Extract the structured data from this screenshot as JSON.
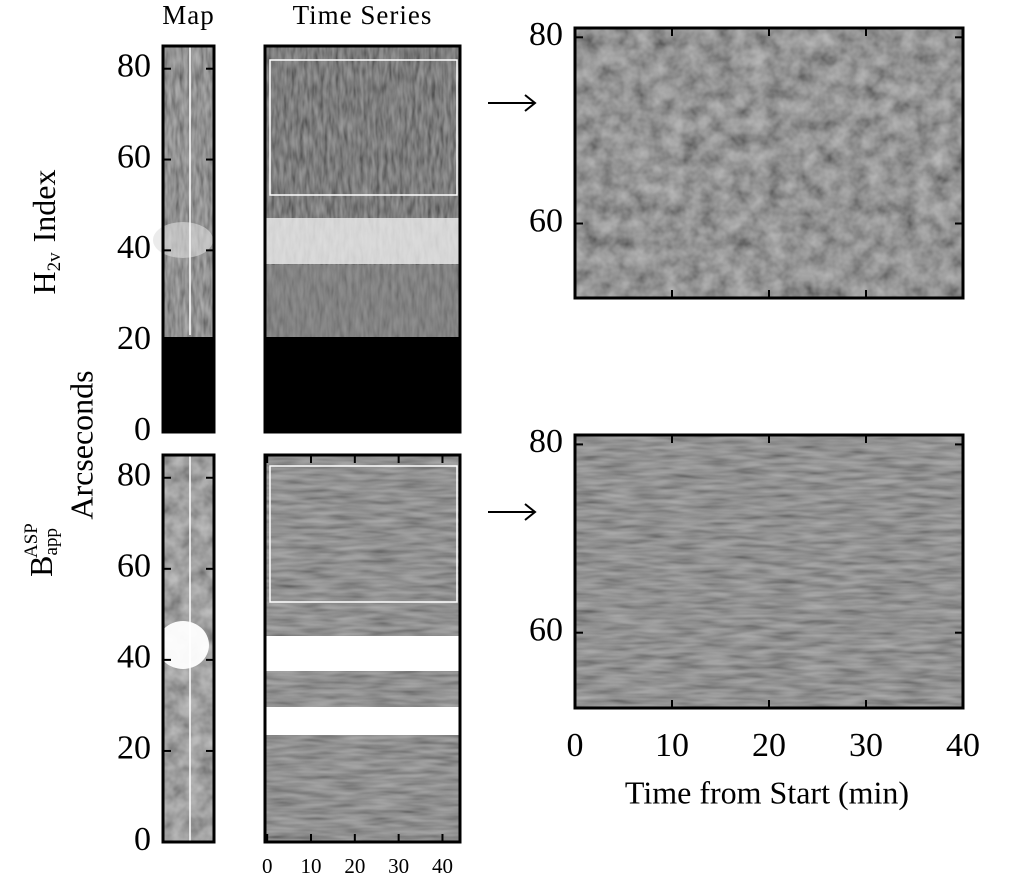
{
  "chart_data": [
    {
      "type": "image",
      "title": "Map",
      "ylim": [
        0,
        85
      ],
      "yticks": [
        0,
        20,
        40,
        60,
        80
      ]
    },
    {
      "type": "image",
      "title": "Time Series",
      "ylim": [
        0,
        85
      ]
    },
    {
      "type": "image",
      "ylim": [
        0,
        85
      ],
      "yticks": [
        0,
        20,
        40,
        60,
        80
      ]
    },
    {
      "type": "image",
      "ylim": [
        0,
        85
      ],
      "xlim": [
        -0.5,
        44
      ],
      "xticks": [
        0,
        10,
        20,
        30,
        40
      ]
    },
    {
      "type": "image",
      "ylim": [
        52,
        81
      ],
      "yticks": [
        60,
        80
      ],
      "xlim": [
        0,
        40
      ],
      "xticks": [
        0,
        10,
        20,
        30,
        40
      ]
    },
    {
      "type": "image",
      "ylim": [
        52,
        81
      ],
      "yticks": [
        60,
        80
      ],
      "xlim": [
        0,
        40
      ],
      "xticks": [
        0,
        10,
        20,
        30,
        40
      ],
      "x_label": "Time from Start (min)"
    }
  ],
  "y_labels": {
    "row1": [
      "H",
      "2v",
      "Index"
    ],
    "shared": "Arcseconds",
    "row2": [
      "B",
      "app",
      "ASP"
    ]
  }
}
